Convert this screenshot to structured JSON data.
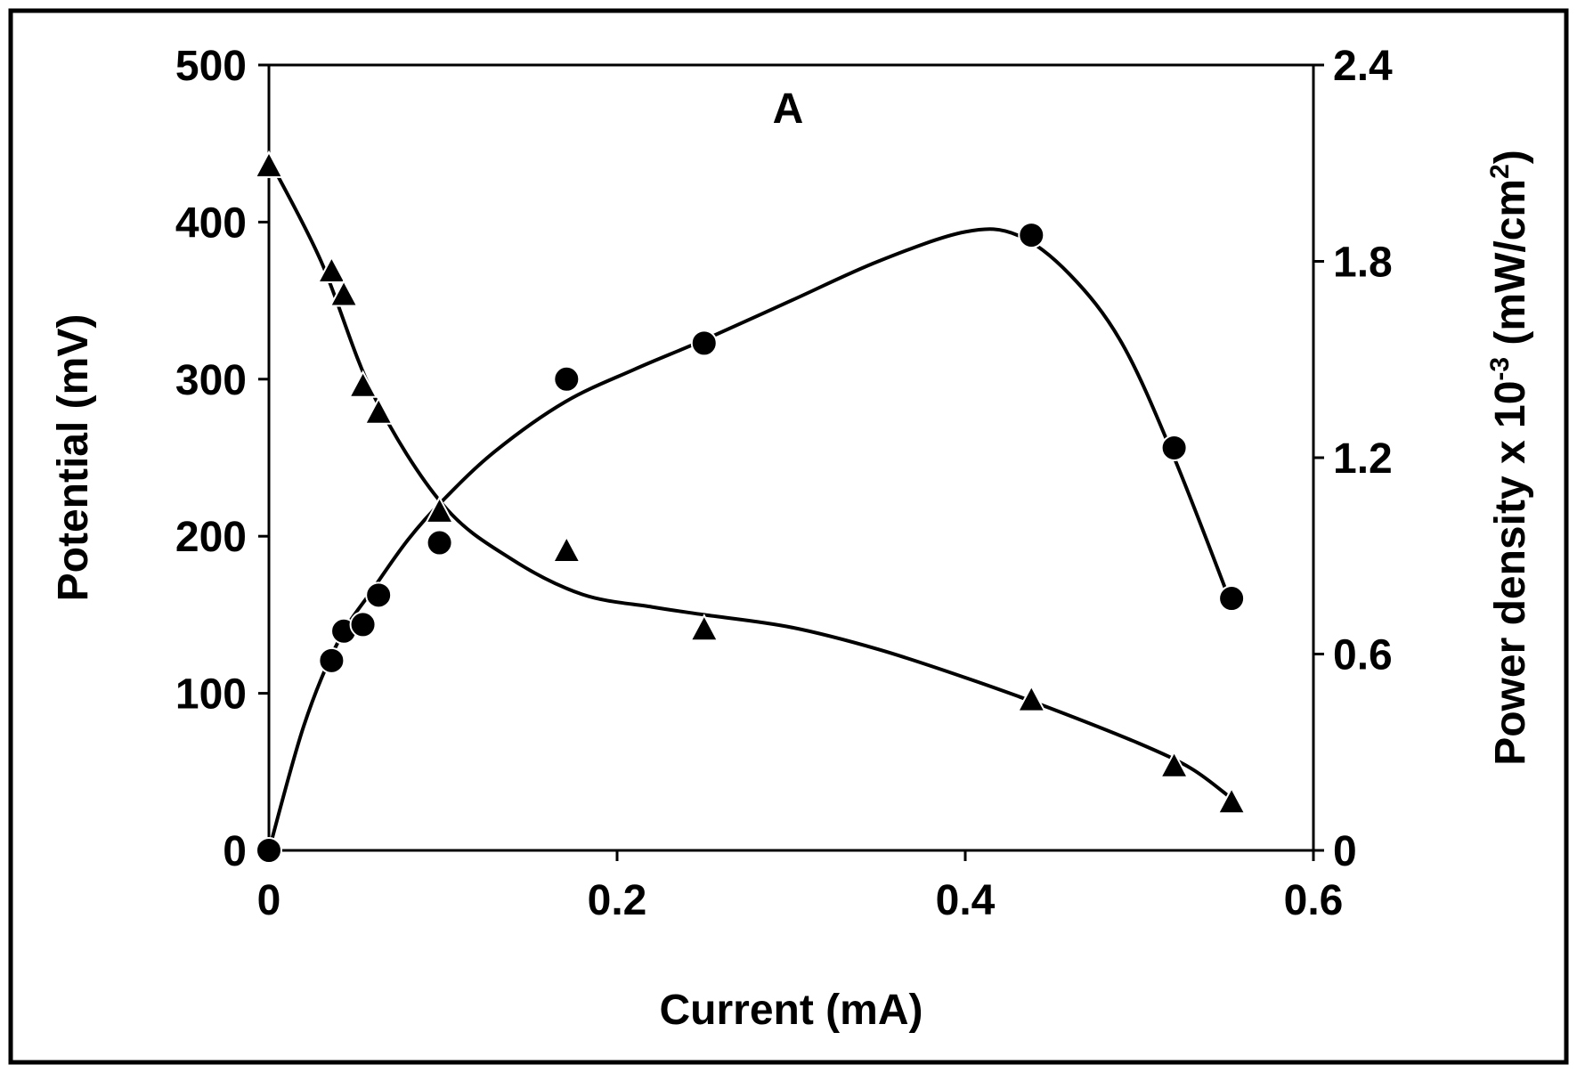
{
  "chart_data": {
    "type": "scatter",
    "panel_label": "A",
    "xlabel": "Current (mA)",
    "ylabel": "Potential (mV)",
    "y2label": {
      "main": "Power density x 10",
      "exp": "-3",
      "unit_open": " (mW/cm",
      "unit_exp": "2",
      "unit_close": ")"
    },
    "xlim": [
      0,
      0.6
    ],
    "ylim": [
      0,
      500
    ],
    "y2lim": [
      0,
      2.4
    ],
    "x_ticks": [
      "0",
      "0.2",
      "0.4",
      "0.6"
    ],
    "y_ticks": [
      "0",
      "100",
      "200",
      "300",
      "400",
      "500"
    ],
    "y2_ticks": [
      "0",
      "0.6",
      "1.2",
      "1.8",
      "2.4"
    ],
    "grid": false,
    "series": [
      {
        "axis": "y",
        "marker": "triangle",
        "x": [
          0,
          0.036,
          0.043,
          0.054,
          0.063,
          0.098,
          0.171,
          0.25,
          0.438,
          0.52,
          0.553
        ],
        "y": [
          435,
          368,
          353,
          295,
          278,
          215,
          190,
          140,
          95,
          53,
          30
        ]
      },
      {
        "axis": "y2",
        "marker": "circle",
        "x": [
          0,
          0.036,
          0.043,
          0.054,
          0.063,
          0.098,
          0.171,
          0.25,
          0.438,
          0.52,
          0.553
        ],
        "y": [
          0,
          0.58,
          0.67,
          0.69,
          0.78,
          0.94,
          1.44,
          1.55,
          1.88,
          1.23,
          0.77
        ]
      }
    ],
    "fit_curves": [
      {
        "axis": "y",
        "x": [
          0,
          0.03,
          0.06,
          0.1,
          0.14,
          0.18,
          0.22,
          0.25,
          0.3,
          0.35,
          0.4,
          0.45,
          0.5,
          0.53,
          0.553
        ],
        "y": [
          440,
          375,
          290,
          220,
          185,
          163,
          155,
          150,
          142,
          128,
          110,
          90,
          68,
          52,
          33
        ]
      },
      {
        "axis": "y2",
        "x": [
          0,
          0.02,
          0.04,
          0.06,
          0.08,
          0.1,
          0.13,
          0.17,
          0.21,
          0.25,
          0.3,
          0.35,
          0.4,
          0.43,
          0.46,
          0.49,
          0.52,
          0.553
        ],
        "y": [
          0,
          0.38,
          0.64,
          0.8,
          0.95,
          1.07,
          1.22,
          1.37,
          1.47,
          1.56,
          1.68,
          1.8,
          1.89,
          1.88,
          1.76,
          1.55,
          1.2,
          0.75
        ]
      }
    ]
  }
}
